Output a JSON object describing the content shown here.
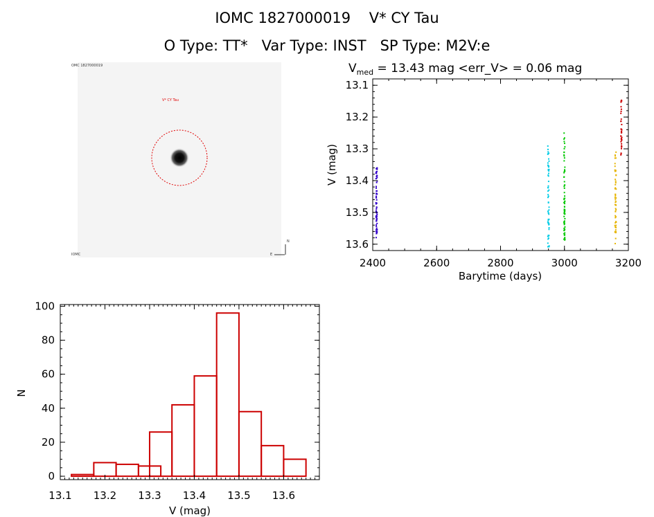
{
  "header": {
    "title_line1": "IOMC 1827000019    V* CY Tau",
    "title_line2": "O Type: TT*   Var Type: INST   SP Type: M2V:e"
  },
  "stamp": {
    "background": "#f4f4f4",
    "circle_color": "#e00000",
    "red_label": "V* CY Tau",
    "corner_labels": [
      "OMC 1827000019",
      "IOMC",
      "N",
      "E"
    ]
  },
  "chart_data": [
    {
      "type": "scatter",
      "title": "V_med = 13.43 mag <err_V> = 0.06 mag",
      "title_parts": {
        "v": "V",
        "sub": "med",
        "rest": " = 13.43 mag <err_V> = 0.06 mag"
      },
      "xlabel": "Barytime (days)",
      "ylabel": "V (mag)",
      "xlim": [
        2400,
        3200
      ],
      "ylim": [
        13.62,
        13.08
      ],
      "x_ticks": [
        2400,
        2600,
        2800,
        3000,
        3200
      ],
      "y_ticks": [
        13.1,
        13.2,
        13.3,
        13.4,
        13.5,
        13.6
      ],
      "y_inverted": true,
      "series": [
        {
          "color": "#3300cc",
          "x": 2412,
          "y_range": [
            13.36,
            13.58
          ],
          "x_spread": 4,
          "count": 70
        },
        {
          "color": "#00cce6",
          "x": 2950,
          "y_range": [
            13.29,
            13.61
          ],
          "x_spread": 4,
          "count": 60
        },
        {
          "color": "#00c800",
          "x": 3000,
          "y_range": [
            13.25,
            13.6
          ],
          "x_spread": 3,
          "count": 75
        },
        {
          "color": "#e6b400",
          "x": 3160,
          "y_range": [
            13.31,
            13.6
          ],
          "x_spread": 4,
          "count": 55
        },
        {
          "color": "#cc0000",
          "x": 3178,
          "y_range": [
            13.13,
            13.32
          ],
          "x_spread": 3,
          "count": 35
        }
      ]
    },
    {
      "type": "bar",
      "xlabel": "V (mag)",
      "ylabel": "N",
      "xlim": [
        13.1,
        13.68
      ],
      "ylim": [
        -2,
        101
      ],
      "x_ticks": [
        13.1,
        13.2,
        13.3,
        13.4,
        13.5,
        13.6
      ],
      "y_ticks": [
        0,
        20,
        40,
        60,
        80,
        100
      ],
      "bar_color": "#cc0000",
      "bin_width": 0.05,
      "bins": [
        {
          "start": 13.125,
          "value": 1
        },
        {
          "start": 13.175,
          "value": 8
        },
        {
          "start": 13.225,
          "value": 7
        },
        {
          "start": 13.275,
          "value": 6
        },
        {
          "start": 13.3,
          "value": 26
        },
        {
          "start": 13.35,
          "value": 42
        },
        {
          "start": 13.4,
          "value": 59
        },
        {
          "start": 13.45,
          "value": 96
        },
        {
          "start": 13.5,
          "value": 38
        },
        {
          "start": 13.55,
          "value": 18
        },
        {
          "start": 13.6,
          "value": 10
        }
      ]
    }
  ]
}
